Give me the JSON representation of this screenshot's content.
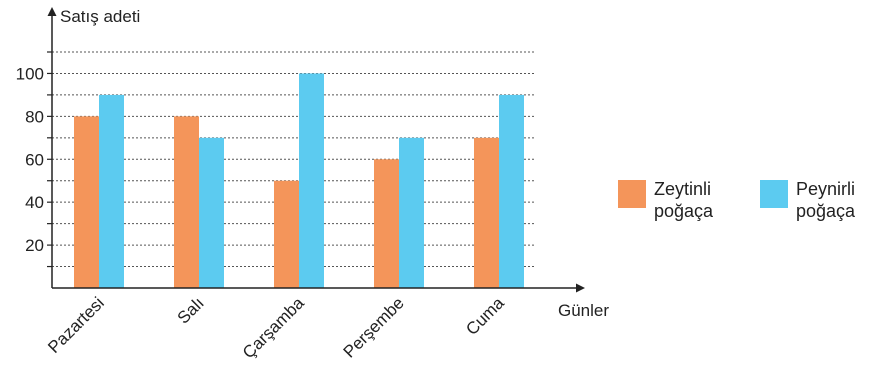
{
  "chart_data": {
    "type": "bar",
    "ylabel": "Satış adeti",
    "xlabel": "Günler",
    "categories": [
      "Pazartesi",
      "Salı",
      "Çarşamba",
      "Perşembe",
      "Cuma"
    ],
    "ylim": [
      0,
      110
    ],
    "yticks": [
      20,
      40,
      60,
      80,
      100
    ],
    "grid": true,
    "legend_position": "right",
    "series": [
      {
        "name": "Zeytinli\npoğaça",
        "color": "#f4955a",
        "values": [
          80,
          80,
          50,
          60,
          70
        ]
      },
      {
        "name": "Peynirli\npoğaça",
        "color": "#5ccbf0",
        "values": [
          90,
          70,
          100,
          70,
          90
        ]
      }
    ]
  }
}
